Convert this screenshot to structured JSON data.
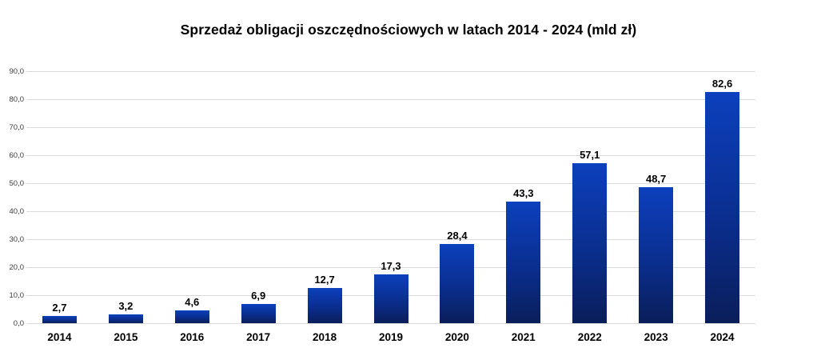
{
  "chart_data": {
    "type": "bar",
    "title": "Sprzedaż obligacji oszczędnościowych w latach 2014 - 2024 (mld zł)",
    "categories": [
      "2014",
      "2015",
      "2016",
      "2017",
      "2018",
      "2019",
      "2020",
      "2021",
      "2022",
      "2023",
      "2024"
    ],
    "values": [
      2.7,
      3.2,
      4.6,
      6.9,
      12.7,
      17.3,
      28.4,
      43.3,
      57.1,
      48.7,
      82.6
    ],
    "value_labels": [
      "2,7",
      "3,2",
      "4,6",
      "6,9",
      "12,7",
      "17,3",
      "28,4",
      "43,3",
      "57,1",
      "48,7",
      "82,6"
    ],
    "xlabel": "",
    "ylabel": "",
    "ylim": [
      0,
      90
    ],
    "ytick_step": 10,
    "ytick_labels": [
      "0,0",
      "10,0",
      "20,0",
      "30,0",
      "40,0",
      "50,0",
      "60,0",
      "70,0",
      "80,0",
      "90,0"
    ],
    "grid": true,
    "legend": false,
    "decimal_separator": ",",
    "colors": {
      "bar_gradient_top": "#0c40bd",
      "bar_gradient_mid": "#0a2e8e",
      "bar_gradient_bottom": "#0a1e5a",
      "gridline": "#dadada",
      "tick_label": "#3d3d3d",
      "data_label": "#000000",
      "background": "#ffffff"
    }
  }
}
